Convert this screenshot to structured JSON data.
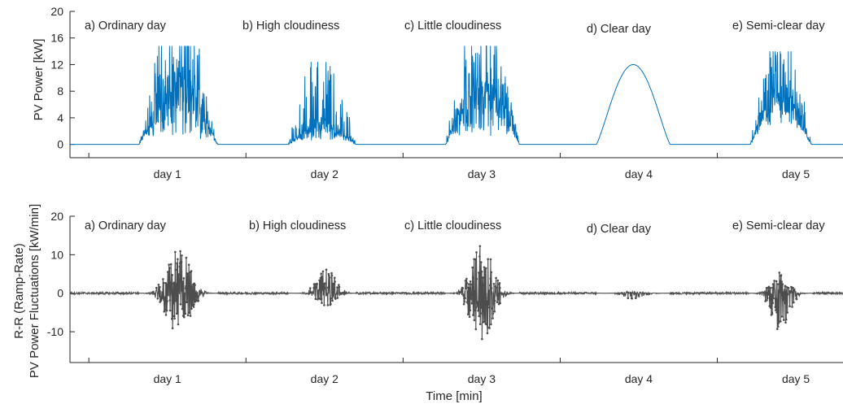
{
  "colors": {
    "top_series": "#0072BD",
    "bottom_series": "#4d4d4d",
    "axis": "#262626"
  },
  "chart_data": [
    {
      "type": "line",
      "ylabel": "PV Power [kW]",
      "xlabel": "",
      "ylim": [
        -2,
        20
      ],
      "yticks": [
        0,
        4,
        8,
        12,
        16,
        20
      ],
      "x_unit": "day",
      "xlim": [
        0.38,
        5.3
      ],
      "xtick_positions": [
        1,
        2,
        3,
        4,
        5
      ],
      "xtick_labels": [
        "day 1",
        "day 2",
        "day 3",
        "day 4",
        "day 5"
      ],
      "grid": false,
      "annotations": [
        "a) Ordinary day",
        "b) High cloudiness",
        "c) Little cloudiness",
        "d) Clear day",
        "e) Semi-clear day"
      ],
      "series": [
        {
          "days": [
            {
              "day": "day 1",
              "condition": "ordinary",
              "start": 0.82,
              "end": 1.32,
              "peak_time": 1.07,
              "peak_envelope_kW": 14.5,
              "max_kW": 14.8,
              "min_midday_kW": 2.0
            },
            {
              "day": "day 2",
              "condition": "high cloudiness",
              "start": 1.77,
              "end": 2.2,
              "peak_time": 2.0,
              "peak_envelope_kW": 5.0,
              "max_kW": 12.4,
              "min_midday_kW": 1.0
            },
            {
              "day": "day 3",
              "condition": "little cloudiness",
              "start": 2.77,
              "end": 3.24,
              "peak_time": 3.0,
              "peak_envelope_kW": 14.5,
              "max_kW": 14.8,
              "min_midday_kW": 2.5
            },
            {
              "day": "day 4",
              "condition": "clear",
              "start": 3.73,
              "end": 4.2,
              "peak_time": 3.97,
              "peak_envelope_kW": 12.0,
              "max_kW": 12.1,
              "min_midday_kW": 12.0
            },
            {
              "day": "day 5",
              "condition": "semi-clear",
              "start": 4.71,
              "end": 5.1,
              "peak_time": 4.88,
              "peak_envelope_kW": 12.0,
              "max_kW": 14.0,
              "min_midday_kW": 5.0
            }
          ]
        }
      ]
    },
    {
      "type": "line",
      "ylabel": "R-R (Ramp-Rate) PV Power Fluctuations [kW/min]",
      "xlabel": "Time [min]",
      "ylim": [
        -18,
        20
      ],
      "yticks": [
        -10,
        0,
        10,
        20
      ],
      "x_unit": "day",
      "xlim": [
        0.38,
        5.3
      ],
      "xtick_positions": [
        1,
        2,
        3,
        4,
        5
      ],
      "xtick_labels": [
        "day 1",
        "day 2",
        "day 3",
        "day 4",
        "day 5"
      ],
      "grid": false,
      "annotations": [
        "a) Ordinary day",
        "b) High cloudiness",
        "c) Little cloudiness",
        "d) Clear day",
        "e) Semi-clear day"
      ],
      "series": [
        {
          "days": [
            {
              "day": "day 1",
              "start": 0.82,
              "end": 1.32,
              "center": 1.07,
              "max_rate": 12.0,
              "min_rate": -11.5
            },
            {
              "day": "day 2",
              "start": 1.77,
              "end": 2.2,
              "center": 2.02,
              "max_rate": 6.5,
              "min_rate": -3.5
            },
            {
              "day": "day 3",
              "start": 2.77,
              "end": 3.24,
              "center": 3.0,
              "max_rate": 13.0,
              "min_rate": -13.5
            },
            {
              "day": "day 4",
              "start": 3.73,
              "end": 4.2,
              "center": 3.97,
              "max_rate": 0.6,
              "min_rate": -1.5
            },
            {
              "day": "day 5",
              "start": 4.71,
              "end": 5.1,
              "center": 4.9,
              "max_rate": 5.5,
              "min_rate": -10.0
            }
          ]
        }
      ]
    }
  ]
}
